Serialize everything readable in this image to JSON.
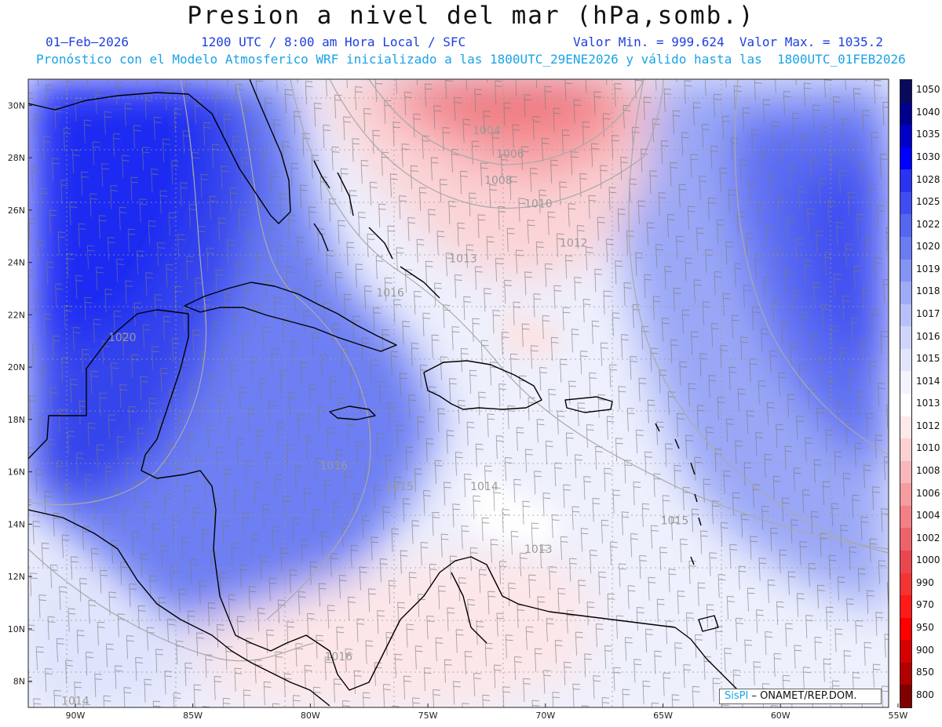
{
  "header": {
    "title": "Presion a nivel del mar (hPa,somb.)",
    "date": "01–Feb–2026",
    "time": "1200 UTC / 8:00 am Hora Local / SFC",
    "min_max": "Valor Min. = 999.624  Valor Max. = 1035.2",
    "model_line": "Pronóstico con el Modelo Atmosferico WRF inicializado a las 1800UTC_29ENE2026 y válido hasta las  1800UTC_01FEB2026"
  },
  "map": {
    "lat_labels": [
      "30N",
      "28N",
      "26N",
      "24N",
      "22N",
      "20N",
      "18N",
      "16N",
      "14N",
      "12N",
      "10N",
      "8N"
    ],
    "lon_labels": [
      "90W",
      "85W",
      "80W",
      "75W",
      "70W",
      "65W",
      "60W",
      "55W"
    ],
    "lat_range": [
      7,
      31
    ],
    "lon_range": [
      -92,
      -55.4
    ],
    "isobar_labels": [
      {
        "text": "1004",
        "lon": -72.5,
        "lat": 28.9
      },
      {
        "text": "1006",
        "lon": -71.5,
        "lat": 28.0
      },
      {
        "text": "1008",
        "lon": -72.0,
        "lat": 27.0
      },
      {
        "text": "1010",
        "lon": -70.3,
        "lat": 26.1
      },
      {
        "text": "1012",
        "lon": -68.8,
        "lat": 24.6
      },
      {
        "text": "1013",
        "lon": -73.5,
        "lat": 24.0
      },
      {
        "text": "1016",
        "lon": -76.6,
        "lat": 22.7
      },
      {
        "text": "1020",
        "lon": -88.0,
        "lat": 21.0
      },
      {
        "text": "1016",
        "lon": -79.0,
        "lat": 16.1
      },
      {
        "text": "1015",
        "lon": -76.2,
        "lat": 15.3
      },
      {
        "text": "1014",
        "lon": -72.6,
        "lat": 15.3
      },
      {
        "text": "1015",
        "lon": -64.5,
        "lat": 14.0
      },
      {
        "text": "1013",
        "lon": -70.3,
        "lat": 12.9
      },
      {
        "text": "1014",
        "lon": -90.0,
        "lat": 7.1
      },
      {
        "text": "1016",
        "lon": -78.8,
        "lat": 8.8
      }
    ]
  },
  "legend": {
    "levels": [
      {
        "label": "1050",
        "color": "#0a0a5c"
      },
      {
        "label": "1040",
        "color": "#00008e"
      },
      {
        "label": "1035",
        "color": "#0000c8"
      },
      {
        "label": "1030",
        "color": "#0000ff"
      },
      {
        "label": "1028",
        "color": "#2a33f0"
      },
      {
        "label": "1025",
        "color": "#3f4df0"
      },
      {
        "label": "1022",
        "color": "#5566f0"
      },
      {
        "label": "1020",
        "color": "#6a7cf2"
      },
      {
        "label": "1019",
        "color": "#8494f4"
      },
      {
        "label": "1018",
        "color": "#9eabf6"
      },
      {
        "label": "1017",
        "color": "#b7c1f8"
      },
      {
        "label": "1016",
        "color": "#cfd5fa"
      },
      {
        "label": "1015",
        "color": "#e2e5fc"
      },
      {
        "label": "1014",
        "color": "#f2f3fe"
      },
      {
        "label": "1013",
        "color": "#ffffff"
      },
      {
        "label": "1012",
        "color": "#fde9ea"
      },
      {
        "label": "1010",
        "color": "#fbd1d3"
      },
      {
        "label": "1008",
        "color": "#f8b7ba"
      },
      {
        "label": "1006",
        "color": "#f59ca0"
      },
      {
        "label": "1004",
        "color": "#f28086"
      },
      {
        "label": "1002",
        "color": "#ee636b"
      },
      {
        "label": "1000",
        "color": "#ea4650"
      },
      {
        "label": "990",
        "color": "#f43333"
      },
      {
        "label": "970",
        "color": "#ff1a1a"
      },
      {
        "label": "950",
        "color": "#ff0000"
      },
      {
        "label": "900",
        "color": "#d60000"
      },
      {
        "label": "850",
        "color": "#b00000"
      },
      {
        "label": "800",
        "color": "#800000"
      }
    ]
  },
  "credit": {
    "brand": "SisPI",
    "org": " – ONAMET/REP.DOM."
  }
}
